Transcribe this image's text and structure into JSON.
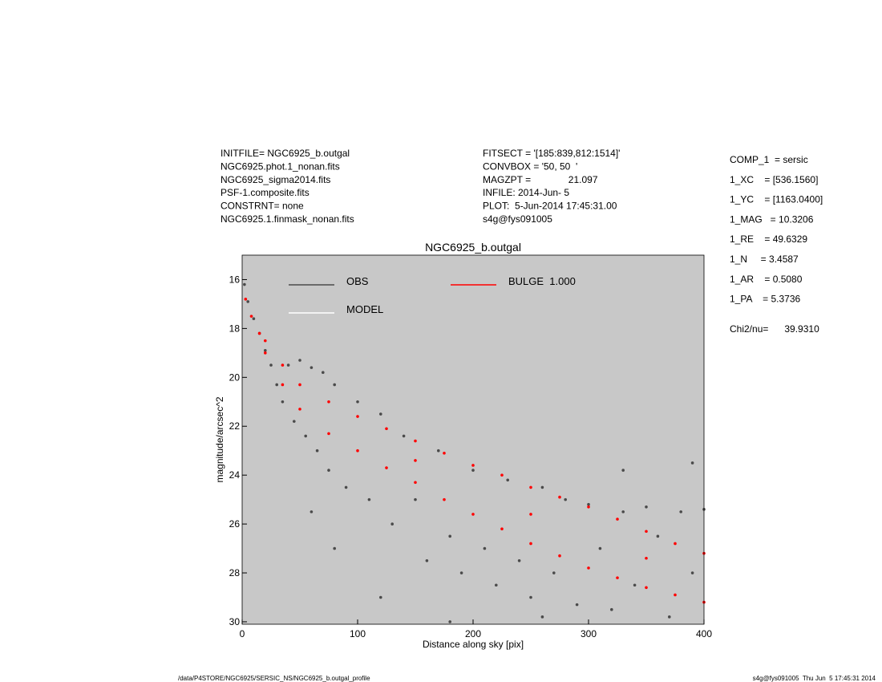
{
  "header_left": [
    "INITFILE= NGC6925_b.outgal",
    "NGC6925.phot.1_nonan.fits",
    "NGC6925_sigma2014.fits",
    "PSF-1.composite.fits",
    "CONSTRNT= none",
    "NGC6925.1.finmask_nonan.fits"
  ],
  "header_middle": [
    "FITSECT = '[185:839,812:1514]'",
    "CONVBOX = '50, 50  '",
    "MAGZPT =              21.097",
    "INFILE: 2014-Jun- 5",
    "PLOT:  5-Jun-2014 17:45:31.00",
    "s4g@fys091005"
  ],
  "parameters": [
    "COMP_1  = sersic",
    "1_XC    = [536.1560]",
    "1_YC    = [1163.0400]",
    "1_MAG   = 10.3206",
    "1_RE    = 49.6329",
    "1_N     = 3.4587",
    "1_AR    = 0.5080",
    "1_PA    = 5.3736"
  ],
  "fit": "Chi2/nu=      39.9310",
  "footer_left": "/data/P4STORE/NGC6925/SERSIC_NS/NGC6925_b.outgal_profile",
  "footer_right": "s4g@fys091005  Thu Jun  5 17:45:31 2014",
  "chart_data": {
    "type": "scatter",
    "title": "NGC6925_b.outgal",
    "x_label": "Distance along sky [pix]",
    "y_label": "magnitude/arcsec^2",
    "xlim": [
      0,
      400
    ],
    "xticks": [
      0,
      100,
      200,
      300,
      400
    ],
    "ylim": [
      30.1,
      15
    ],
    "yticks": [
      16,
      18,
      20,
      22,
      24,
      26,
      28,
      30
    ],
    "background": "#c8c8c8",
    "series": [
      {
        "name": "OBS",
        "color": "#4a4a4a",
        "x": [
          2,
          5,
          10,
          15,
          20,
          25,
          30,
          35,
          40,
          45,
          50,
          55,
          60,
          65,
          70,
          75,
          80,
          90,
          100,
          110,
          120,
          130,
          140,
          150,
          160,
          170,
          180,
          190,
          200,
          210,
          220,
          230,
          240,
          250,
          260,
          270,
          280,
          290,
          300,
          310,
          320,
          330,
          340,
          350,
          360,
          370,
          380,
          390,
          400,
          120,
          180,
          260,
          330,
          390,
          80,
          60
        ],
        "values": [
          16.2,
          16.9,
          17.6,
          18.2,
          18.9,
          19.5,
          20.3,
          21,
          19.5,
          21.8,
          19.3,
          22.4,
          19.6,
          23,
          19.8,
          23.8,
          20.3,
          24.5,
          21,
          25,
          21.5,
          26,
          22.4,
          25,
          27.5,
          23,
          26.5,
          28,
          23.8,
          27,
          28.5,
          24.2,
          27.5,
          29,
          24.5,
          28,
          25,
          29.3,
          25.2,
          27,
          29.5,
          25.5,
          28.5,
          25.3,
          26.5,
          29.8,
          25.5,
          28,
          25.4,
          29,
          30,
          29.8,
          23.8,
          23.5,
          27,
          25.5
        ]
      },
      {
        "name": "MODEL",
        "color": "#ffffff",
        "x": [],
        "values": []
      },
      {
        "name": "BULGE  1.000",
        "color": "#ff0000",
        "x": [
          3,
          8,
          15,
          20,
          20,
          35,
          35,
          50,
          50,
          75,
          75,
          100,
          100,
          125,
          125,
          150,
          150,
          175,
          175,
          200,
          200,
          225,
          225,
          250,
          250,
          275,
          275,
          300,
          300,
          325,
          325,
          350,
          350,
          375,
          375,
          400,
          400,
          150,
          250,
          350
        ],
        "values": [
          16.8,
          17.5,
          18.2,
          18.5,
          19,
          19.5,
          20.3,
          20.3,
          21.3,
          21,
          22.3,
          21.6,
          23,
          22.1,
          23.7,
          22.6,
          24.3,
          23.1,
          25,
          23.6,
          25.6,
          24,
          26.2,
          24.5,
          26.8,
          24.9,
          27.3,
          25.3,
          27.8,
          25.8,
          28.2,
          26.3,
          28.6,
          26.8,
          28.9,
          27.2,
          29.2,
          23.4,
          25.6,
          27.4
        ]
      }
    ]
  }
}
